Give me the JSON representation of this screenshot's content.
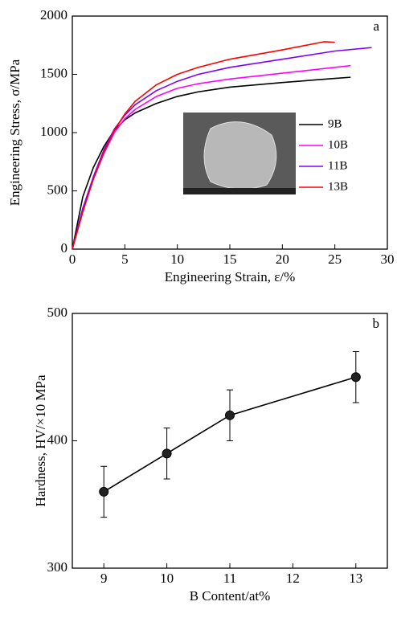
{
  "chart_data": [
    {
      "type": "line",
      "panel_label": "a",
      "xlabel": "Engineering Strain, ε/%",
      "ylabel": "Engineering Stress, σ/MPa",
      "xlim": [
        0,
        30
      ],
      "xticks": [
        0,
        5,
        10,
        15,
        20,
        25,
        30
      ],
      "ylim": [
        0,
        2000
      ],
      "yticks": [
        0,
        500,
        1000,
        1500,
        2000
      ],
      "series": [
        {
          "name": "9B",
          "color": "#000000",
          "x": [
            0,
            1,
            2,
            3,
            4,
            5,
            6,
            8,
            10,
            12,
            15,
            20,
            25,
            26.5
          ],
          "values": [
            0,
            450,
            700,
            880,
            1020,
            1110,
            1170,
            1250,
            1310,
            1350,
            1390,
            1430,
            1465,
            1475
          ]
        },
        {
          "name": "10B",
          "color": "#ff00ff",
          "x": [
            0,
            1,
            2,
            3,
            4,
            5,
            6,
            8,
            10,
            12,
            15,
            20,
            25,
            26.5
          ],
          "values": [
            0,
            350,
            600,
            820,
            1000,
            1120,
            1200,
            1310,
            1380,
            1420,
            1460,
            1510,
            1560,
            1575
          ]
        },
        {
          "name": "11B",
          "color": "#8000ff",
          "x": [
            0,
            1,
            2,
            3,
            4,
            5,
            6,
            8,
            10,
            12,
            15,
            20,
            25,
            28.5
          ],
          "values": [
            0,
            350,
            620,
            850,
            1030,
            1150,
            1240,
            1360,
            1440,
            1500,
            1560,
            1630,
            1700,
            1730
          ]
        },
        {
          "name": "13B",
          "color": "#ff0000",
          "x": [
            0,
            1,
            2,
            3,
            4,
            5,
            6,
            8,
            10,
            12,
            15,
            20,
            24,
            25
          ],
          "values": [
            0,
            320,
            600,
            830,
            1020,
            1160,
            1270,
            1410,
            1500,
            1560,
            1630,
            1710,
            1780,
            1775
          ]
        }
      ]
    },
    {
      "type": "errorbar",
      "panel_label": "b",
      "xlabel": "B Content/at%",
      "ylabel": "Hardness, HV/×10 MPa",
      "xlim": [
        8.5,
        13.5
      ],
      "xticks": [
        9,
        10,
        11,
        12,
        13
      ],
      "ylim": [
        300,
        500
      ],
      "yticks": [
        300,
        400,
        500
      ],
      "series": [
        {
          "color": "#000000",
          "x": [
            9,
            10,
            11,
            13
          ],
          "values": [
            360,
            390,
            420,
            450
          ],
          "errors": [
            20,
            20,
            20,
            20
          ]
        }
      ]
    }
  ]
}
